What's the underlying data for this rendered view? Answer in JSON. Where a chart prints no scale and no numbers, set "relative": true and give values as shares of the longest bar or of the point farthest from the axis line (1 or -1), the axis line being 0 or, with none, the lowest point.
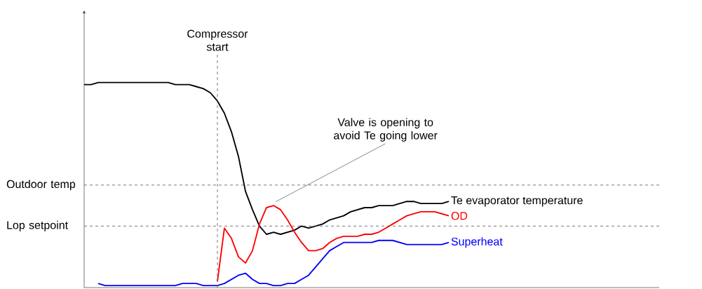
{
  "chart_data": {
    "type": "line",
    "relative": true,
    "legend": false,
    "line_style": "solid",
    "marker": "none",
    "categories": [
      null,
      null,
      null,
      null,
      null,
      null,
      null,
      null,
      null,
      null,
      null,
      null,
      null,
      null,
      null,
      null,
      null,
      null,
      null,
      null,
      null,
      null,
      null,
      null,
      null,
      null,
      null,
      null,
      null,
      null,
      null,
      null,
      null,
      null,
      null,
      null,
      null,
      null,
      null,
      null,
      null,
      null,
      null,
      null,
      null,
      null,
      null,
      null,
      null,
      null,
      null,
      null,
      null,
      null,
      null,
      null,
      null,
      null,
      null,
      null,
      null,
      null,
      null,
      null,
      null,
      null,
      null,
      null,
      null,
      null,
      null,
      null,
      null,
      null,
      null,
      null,
      null,
      null,
      null,
      null,
      null,
      null,
      null
    ],
    "series": [
      {
        "name": "Te evaporator temperature",
        "color": "#000000",
        "values": [
          0.99,
          0.99,
          1.0,
          1.0,
          1.0,
          1.0,
          1.0,
          1.0,
          1.0,
          1.0,
          1.0,
          1.0,
          1.0,
          0.99,
          0.99,
          0.99,
          0.98,
          0.97,
          0.95,
          0.91,
          0.85,
          0.76,
          0.64,
          0.47,
          0.38,
          0.3,
          0.26,
          0.27,
          0.26,
          0.27,
          0.28,
          0.3,
          0.29,
          0.3,
          0.31,
          0.33,
          0.34,
          0.35,
          0.37,
          0.38,
          0.39,
          0.39,
          0.4,
          0.4,
          0.4,
          0.41,
          0.42,
          0.42,
          0.41,
          0.41,
          0.41,
          0.41,
          0.42,
          null,
          null,
          null,
          null,
          null,
          null,
          null,
          null,
          null,
          null,
          null,
          null,
          null,
          null,
          null,
          null,
          null,
          null,
          null,
          null,
          null,
          null,
          null,
          null,
          null,
          null,
          null,
          null,
          null,
          null
        ]
      },
      {
        "name": "OD",
        "color": "#ff0000",
        "values": [
          null,
          null,
          null,
          null,
          null,
          null,
          null,
          null,
          null,
          null,
          null,
          null,
          null,
          null,
          null,
          null,
          null,
          null,
          null,
          0.03,
          0.29,
          0.24,
          0.15,
          0.12,
          0.18,
          0.31,
          0.39,
          0.4,
          0.38,
          0.33,
          0.27,
          0.22,
          0.18,
          0.18,
          0.19,
          0.22,
          0.24,
          0.25,
          0.25,
          0.25,
          0.26,
          0.26,
          0.27,
          0.29,
          0.31,
          0.33,
          0.35,
          0.36,
          0.37,
          0.37,
          0.37,
          0.36,
          0.35,
          null,
          null,
          null,
          null,
          null,
          null,
          null,
          null,
          null,
          null,
          null,
          null,
          null,
          null,
          null,
          null,
          null,
          null,
          null,
          null,
          null,
          null,
          null,
          null,
          null,
          null,
          null,
          null,
          null,
          null
        ]
      },
      {
        "name": "Superheat",
        "color": "#0000ff",
        "values": [
          null,
          null,
          0.02,
          0.01,
          0.01,
          0.01,
          0.01,
          0.01,
          0.01,
          0.01,
          0.01,
          0.01,
          0.01,
          0.01,
          0.02,
          0.02,
          0.02,
          0.01,
          0.01,
          0.01,
          0.02,
          0.04,
          0.06,
          0.07,
          0.04,
          0.02,
          0.02,
          0.01,
          0.01,
          0.02,
          0.02,
          0.04,
          0.06,
          0.1,
          0.14,
          0.18,
          0.2,
          0.22,
          0.22,
          0.22,
          0.22,
          0.22,
          0.23,
          0.23,
          0.23,
          0.22,
          0.21,
          0.21,
          0.21,
          0.21,
          0.21,
          0.21,
          0.22,
          null,
          null,
          null,
          null,
          null,
          null,
          null,
          null,
          null,
          null,
          null,
          null,
          null,
          null,
          null,
          null,
          null,
          null,
          null,
          null,
          null,
          null,
          null,
          null,
          null,
          null,
          null,
          null,
          null,
          null
        ]
      }
    ],
    "ref_lines": [
      {
        "axis": "y",
        "value": 0.5,
        "label": "Outdoor temp",
        "color": "#555555",
        "line_style": "dashed"
      },
      {
        "axis": "y",
        "value": 0.3,
        "label": "Lop setpoint",
        "color": "#555555",
        "line_style": "dashed"
      }
    ],
    "annotations": [
      "Compressor start",
      "Valve is opening to avoid Te going lower"
    ]
  }
}
